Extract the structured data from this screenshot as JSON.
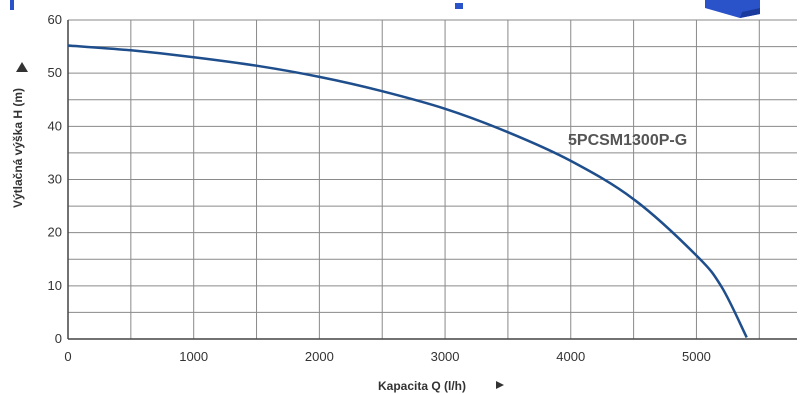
{
  "chart_data": {
    "type": "line",
    "xlabel": "Kapacita Q (l/h)",
    "ylabel": "Výtlačná výška H (m)",
    "xlim": [
      0,
      5800
    ],
    "ylim": [
      0,
      60
    ],
    "x_ticks": [
      "0",
      "1000",
      "2000",
      "3000",
      "4000",
      "5000"
    ],
    "y_ticks": [
      "0",
      "10",
      "20",
      "30",
      "40",
      "50",
      "60"
    ],
    "grid": true,
    "series": [
      {
        "name": "5PCSM1300P-G",
        "color": "#1f4e8c",
        "x": [
          0,
          500,
          1000,
          1500,
          2000,
          2500,
          3000,
          3500,
          4000,
          4500,
          5000,
          5200,
          5400
        ],
        "y": [
          55.2,
          54.3,
          53.0,
          51.4,
          49.3,
          46.6,
          43.3,
          38.9,
          33.5,
          26.3,
          15.7,
          9.8,
          0.3
        ]
      }
    ],
    "axis_arrow_color": "#333333",
    "logo_color": "#2a52c9"
  }
}
